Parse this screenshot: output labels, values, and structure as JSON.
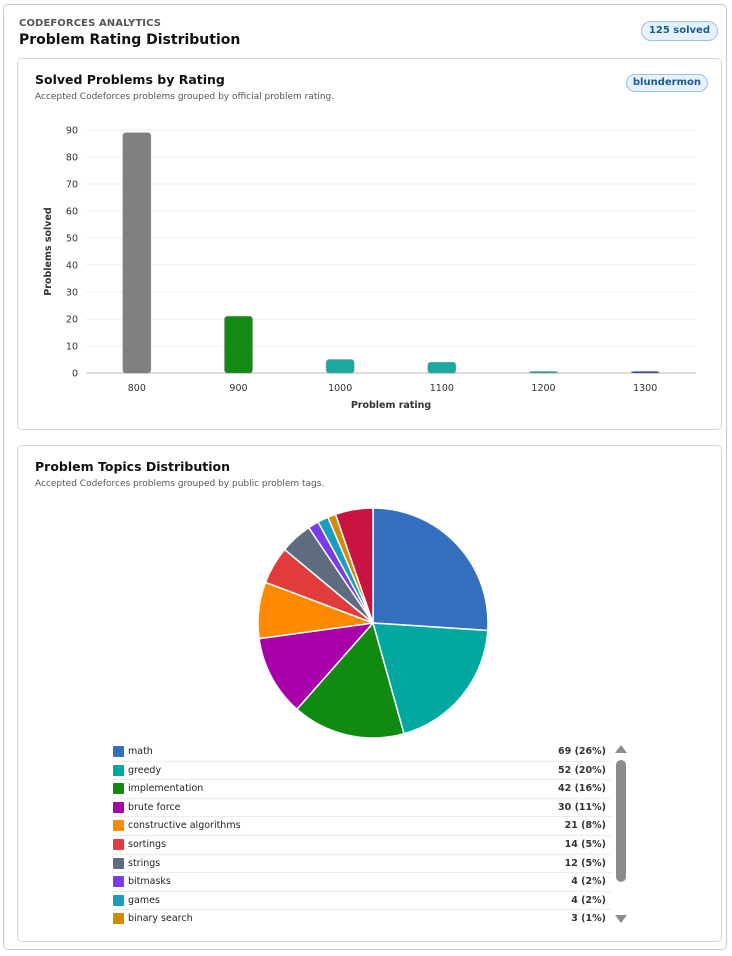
{
  "header": {
    "eyebrow": "CODEFORCES ANALYTICS",
    "title": "Problem Rating Distribution",
    "solved_badge": "125 solved"
  },
  "rating_card": {
    "title": "Solved Problems by Rating",
    "subtitle": "Accepted Codeforces problems grouped by official problem rating.",
    "user_badge": "blundermon"
  },
  "topics_card": {
    "title": "Problem Topics Distribution",
    "subtitle": "Accepted Codeforces problems grouped by public problem tags."
  },
  "chart_data": [
    {
      "type": "bar",
      "xlabel": "Problem rating",
      "ylabel": "Problems solved",
      "categories": [
        "800",
        "900",
        "1000",
        "1100",
        "1200",
        "1300"
      ],
      "values": [
        89,
        21,
        5,
        4,
        0.4,
        0.4
      ],
      "colors": [
        "#808080",
        "#138a13",
        "#1aa8a0",
        "#1aa8a0",
        "#1aa8a0",
        "#2a3fbf"
      ],
      "ylim": [
        0,
        90
      ],
      "yticks": [
        "0",
        "10",
        "20",
        "30",
        "40",
        "50",
        "60",
        "70",
        "80",
        "90"
      ],
      "grid": true
    },
    {
      "type": "pie",
      "slices": [
        {
          "label": "math",
          "value": 69,
          "display": "69 (26%)",
          "color": "#3570c0"
        },
        {
          "label": "greedy",
          "value": 52,
          "display": "52 (20%)",
          "color": "#00a8a0"
        },
        {
          "label": "implementation",
          "value": 42,
          "display": "42 (16%)",
          "color": "#118a11"
        },
        {
          "label": "brute force",
          "value": 30,
          "display": "30 (11%)",
          "color": "#a800a8"
        },
        {
          "label": "constructive algorithms",
          "value": 21,
          "display": "21 (8%)",
          "color": "#ff8a00"
        },
        {
          "label": "sortings",
          "value": 14,
          "display": "14 (5%)",
          "color": "#e23b3b"
        },
        {
          "label": "strings",
          "value": 12,
          "display": "12 (5%)",
          "color": "#5f6b80"
        },
        {
          "label": "bitmasks",
          "value": 4,
          "display": "4 (2%)",
          "color": "#7a3be8"
        },
        {
          "label": "games",
          "value": 4,
          "display": "4 (2%)",
          "color": "#1a9ec0"
        },
        {
          "label": "binary search",
          "value": 3,
          "display": "3 (1%)",
          "color": "#d48a00"
        },
        {
          "value": 14,
          "color": "#c8123f"
        }
      ],
      "legend_visible_rows": 10
    }
  ]
}
